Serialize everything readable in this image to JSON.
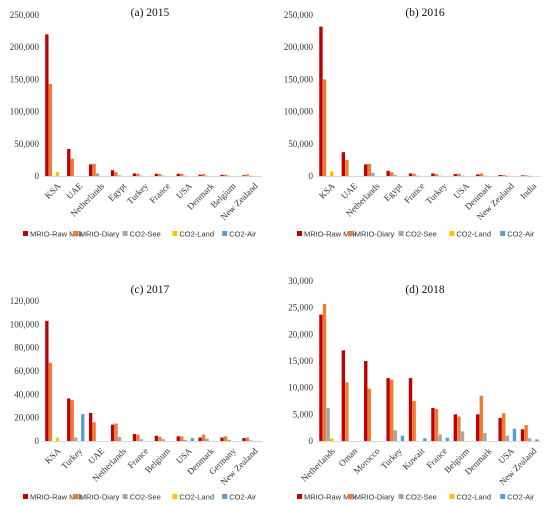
{
  "colors": {
    "MRIO-Raw Milk": "#c00000",
    "MRIO-Diary": "#ed7d31",
    "CO2-See": "#a5a5a5",
    "CO2-Land": "#ffc000",
    "CO2-Air": "#5b9bd5"
  },
  "chart_data": [
    {
      "type": "bar",
      "title": "(a) 2015",
      "categories": [
        "KSA",
        "UAE",
        "Netherlands",
        "Egypt",
        "Turkey",
        "France",
        "USA",
        "Denmark",
        "Belgium",
        "New Zealand"
      ],
      "ylim": [
        0,
        250000
      ],
      "yticks": [
        0,
        50000,
        100000,
        150000,
        200000,
        250000
      ],
      "ytick_labels": [
        "0",
        "50,000",
        "100,000",
        "150,000",
        "200,000",
        "250,000"
      ],
      "series": [
        {
          "name": "MRIO-Raw Milk",
          "values": [
            220000,
            42000,
            18000,
            9000,
            4000,
            3500,
            3500,
            2000,
            1800,
            1200
          ]
        },
        {
          "name": "MRIO-Diary",
          "values": [
            143000,
            27000,
            19000,
            6000,
            3500,
            3000,
            3500,
            3000,
            2000,
            2500
          ]
        },
        {
          "name": "CO2-See",
          "values": [
            0,
            0,
            4000,
            1000,
            500,
            500,
            500,
            500,
            500,
            300
          ]
        },
        {
          "name": "CO2-Land",
          "values": [
            6000,
            0,
            0,
            0,
            0,
            0,
            0,
            0,
            0,
            0
          ]
        },
        {
          "name": "CO2-Air",
          "values": [
            0,
            0,
            0,
            0,
            0,
            0,
            0,
            0,
            0,
            0
          ]
        }
      ],
      "legend": "bottom"
    },
    {
      "type": "bar",
      "title": "(b) 2016",
      "categories": [
        "KSA",
        "UAE",
        "Netherlands",
        "Egypt",
        "France",
        "Turkey",
        "USA",
        "Denmark",
        "New Zealand",
        "India"
      ],
      "ylim": [
        0,
        250000
      ],
      "yticks": [
        0,
        50000,
        100000,
        150000,
        200000,
        250000
      ],
      "ytick_labels": [
        "0",
        "50,000",
        "100,000",
        "150,000",
        "200,000",
        "250,000"
      ],
      "series": [
        {
          "name": "MRIO-Raw Milk",
          "values": [
            232000,
            37000,
            18000,
            8000,
            4000,
            4000,
            3000,
            2500,
            1500,
            1000
          ]
        },
        {
          "name": "MRIO-Diary",
          "values": [
            150000,
            25000,
            19000,
            6000,
            3500,
            3000,
            3500,
            4000,
            1500,
            1000
          ]
        },
        {
          "name": "CO2-See",
          "values": [
            0,
            0,
            5000,
            1500,
            500,
            500,
            500,
            500,
            300,
            300
          ]
        },
        {
          "name": "CO2-Land",
          "values": [
            7000,
            0,
            0,
            0,
            0,
            0,
            0,
            0,
            0,
            0
          ]
        },
        {
          "name": "CO2-Air",
          "values": [
            0,
            0,
            0,
            0,
            0,
            0,
            0,
            0,
            0,
            0
          ]
        }
      ],
      "legend": "bottom"
    },
    {
      "type": "bar",
      "title": "(c) 2017",
      "categories": [
        "KSA",
        "Turkey",
        "UAE",
        "Netherlands",
        "France",
        "Belgium",
        "USA",
        "Denmark",
        "Germany",
        "New Zealand"
      ],
      "ylim": [
        0,
        120000
      ],
      "yticks": [
        0,
        20000,
        40000,
        60000,
        80000,
        100000,
        120000
      ],
      "ytick_labels": [
        "0",
        "20,000",
        "40,000",
        "60,000",
        "80,000",
        "100,000",
        "120,000"
      ],
      "series": [
        {
          "name": "MRIO-Raw Milk",
          "values": [
            103000,
            36500,
            24000,
            14000,
            6000,
            4500,
            4000,
            3000,
            3000,
            2500
          ]
        },
        {
          "name": "MRIO-Diary",
          "values": [
            67000,
            35000,
            16000,
            15000,
            5500,
            3500,
            4000,
            5500,
            4000,
            3000
          ]
        },
        {
          "name": "CO2-See",
          "values": [
            0,
            3000,
            0,
            3500,
            1500,
            1500,
            1000,
            2000,
            1000,
            500
          ]
        },
        {
          "name": "CO2-Land",
          "values": [
            3000,
            0,
            0,
            0,
            0,
            0,
            0,
            0,
            0,
            0
          ]
        },
        {
          "name": "CO2-Air",
          "values": [
            0,
            23000,
            0,
            0,
            0,
            0,
            2500,
            0,
            0,
            0
          ]
        }
      ],
      "legend": "bottom"
    },
    {
      "type": "bar",
      "title": "(d) 2018",
      "categories": [
        "Netherlands",
        "Oman",
        "Morocco",
        "Turkey",
        "Kuwait",
        "France",
        "Belgium",
        "Denmark",
        "USA",
        "New Zealand"
      ],
      "ylim": [
        0,
        30000
      ],
      "yticks": [
        0,
        5000,
        10000,
        15000,
        20000,
        25000,
        30000
      ],
      "ytick_labels": [
        "0",
        "5,000",
        "10,000",
        "15,000",
        "20,000",
        "25,000",
        "30,000"
      ],
      "series": [
        {
          "name": "MRIO-Raw Milk",
          "values": [
            23700,
            17000,
            15000,
            11800,
            11800,
            6200,
            5000,
            5000,
            4300,
            2200
          ]
        },
        {
          "name": "MRIO-Diary",
          "values": [
            25700,
            11000,
            9800,
            11500,
            7500,
            6000,
            4600,
            8500,
            5200,
            3000
          ]
        },
        {
          "name": "CO2-See",
          "values": [
            6200,
            0,
            0,
            2000,
            0,
            1200,
            1800,
            1500,
            1000,
            500
          ]
        },
        {
          "name": "CO2-Land",
          "values": [
            500,
            0,
            0,
            0,
            0,
            0,
            0,
            0,
            0,
            0
          ]
        },
        {
          "name": "CO2-Air",
          "values": [
            0,
            0,
            0,
            1000,
            500,
            600,
            0,
            0,
            2300,
            300
          ]
        }
      ],
      "legend": "bottom"
    }
  ]
}
